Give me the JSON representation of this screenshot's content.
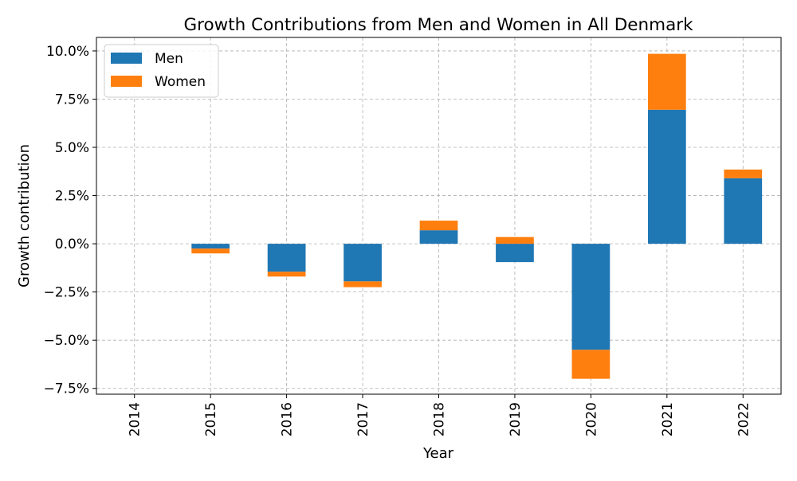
{
  "chart_data": {
    "type": "bar",
    "stacked": true,
    "title": "Growth Contributions from Men and Women in All Denmark",
    "xlabel": "Year",
    "ylabel": "Growth contribution",
    "categories": [
      "2014",
      "2015",
      "2016",
      "2017",
      "2018",
      "2019",
      "2020",
      "2021",
      "2022"
    ],
    "series": [
      {
        "name": "Men",
        "color": "#1f77b4",
        "values": [
          0,
          -0.25,
          -1.45,
          -1.95,
          0.7,
          -0.95,
          -5.5,
          6.95,
          3.4
        ]
      },
      {
        "name": "Women",
        "color": "#ff7f0e",
        "values": [
          0,
          -0.25,
          -0.25,
          -0.3,
          0.5,
          0.35,
          -1.5,
          2.9,
          0.45
        ]
      }
    ],
    "ylim": [
      -7.8,
      10.7
    ],
    "yticks": [
      -7.5,
      -5.0,
      -2.5,
      0.0,
      2.5,
      5.0,
      7.5,
      10.0
    ],
    "ytick_labels": [
      "−7.5%",
      "−5.0%",
      "−2.5%",
      "0.0%",
      "2.5%",
      "5.0%",
      "7.5%",
      "10.0%"
    ],
    "grid": true,
    "legend_position": "top-left"
  }
}
